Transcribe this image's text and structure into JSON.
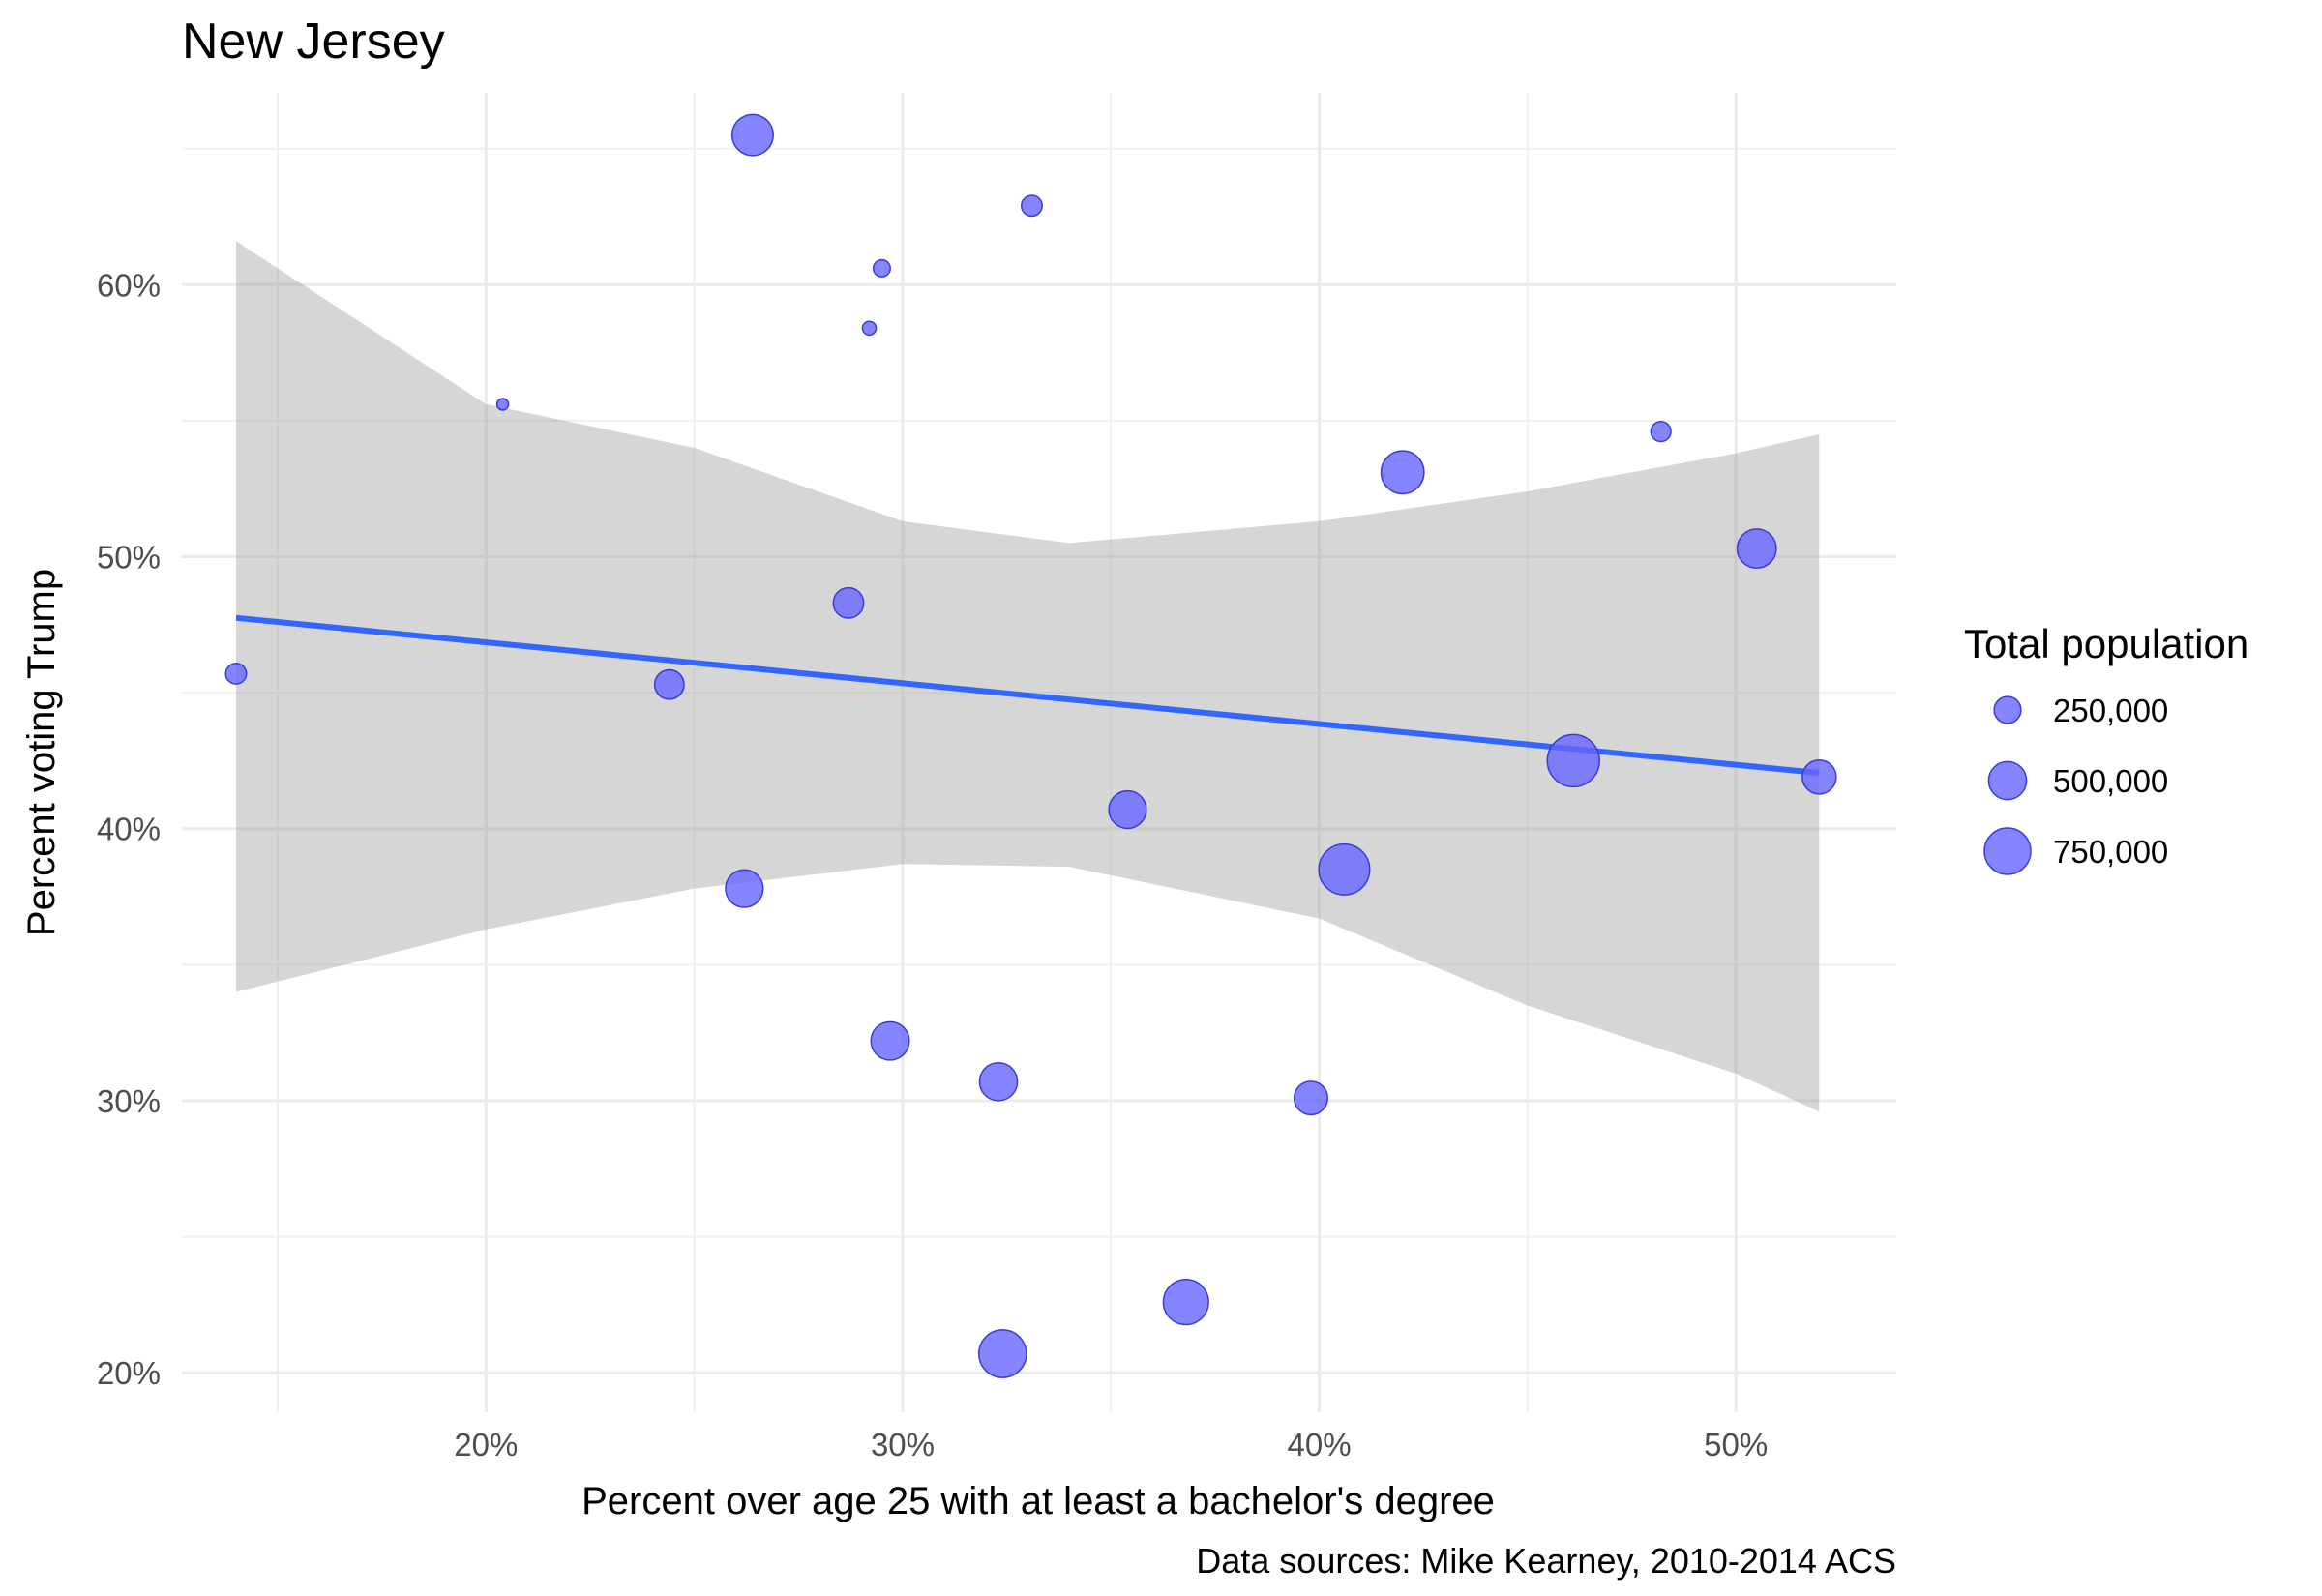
{
  "chart_data": {
    "type": "scatter",
    "title": "New Jersey",
    "xlabel": "Percent over age 25 with at least a bachelor's degree",
    "ylabel": "Percent voting Trump",
    "caption": "Data sources: Mike Kearney, 2010-2014 ACS",
    "x_ticks": [
      0.2,
      0.3,
      0.4,
      0.5
    ],
    "x_tick_labels": [
      "20%",
      "30%",
      "40%",
      "50%"
    ],
    "y_ticks": [
      0.2,
      0.3,
      0.4,
      0.5,
      0.6
    ],
    "y_tick_labels": [
      "20%",
      "30%",
      "40%",
      "50%",
      "60%"
    ],
    "xlim": [
      0.127,
      0.5385
    ],
    "ylim": [
      0.1855,
      0.6705
    ],
    "grid": true,
    "legend": {
      "title": "Total population",
      "placement": "right",
      "labels": [
        "250,000",
        "500,000",
        "750,000"
      ],
      "sizes": [
        250000,
        500000,
        750000
      ]
    },
    "point_color": "#6666ff",
    "point_stroke": "#3a3ad9",
    "point_opacity": 0.8,
    "trend_color": "#3366ff",
    "band_color": "#999999",
    "band_opacity": 0.4,
    "points": [
      {
        "x": 0.14,
        "y": 0.457,
        "pop": 150000
      },
      {
        "x": 0.204,
        "y": 0.556,
        "pop": 15000
      },
      {
        "x": 0.244,
        "y": 0.453,
        "pop": 300000
      },
      {
        "x": 0.262,
        "y": 0.378,
        "pop": 490000
      },
      {
        "x": 0.264,
        "y": 0.655,
        "pop": 590000
      },
      {
        "x": 0.287,
        "y": 0.483,
        "pop": 320000
      },
      {
        "x": 0.292,
        "y": 0.584,
        "pop": 65000
      },
      {
        "x": 0.295,
        "y": 0.606,
        "pop": 100000
      },
      {
        "x": 0.297,
        "y": 0.322,
        "pop": 510000
      },
      {
        "x": 0.323,
        "y": 0.307,
        "pop": 500000
      },
      {
        "x": 0.324,
        "y": 0.207,
        "pop": 790000
      },
      {
        "x": 0.331,
        "y": 0.629,
        "pop": 150000
      },
      {
        "x": 0.354,
        "y": 0.407,
        "pop": 490000
      },
      {
        "x": 0.368,
        "y": 0.226,
        "pop": 710000
      },
      {
        "x": 0.398,
        "y": 0.301,
        "pop": 390000
      },
      {
        "x": 0.406,
        "y": 0.385,
        "pop": 900000
      },
      {
        "x": 0.42,
        "y": 0.531,
        "pop": 640000
      },
      {
        "x": 0.461,
        "y": 0.425,
        "pop": 950000
      },
      {
        "x": 0.482,
        "y": 0.546,
        "pop": 140000
      },
      {
        "x": 0.505,
        "y": 0.503,
        "pop": 530000
      },
      {
        "x": 0.52,
        "y": 0.419,
        "pop": 400000
      }
    ],
    "trend": {
      "x": [
        0.14,
        0.52
      ],
      "y": [
        0.4775,
        0.4205
      ]
    },
    "band": {
      "x": [
        0.14,
        0.2,
        0.25,
        0.3,
        0.34,
        0.4,
        0.45,
        0.5,
        0.52
      ],
      "upper": [
        0.616,
        0.556,
        0.54,
        0.513,
        0.505,
        0.513,
        0.524,
        0.538,
        0.545
      ],
      "lower": [
        0.34,
        0.363,
        0.378,
        0.387,
        0.386,
        0.367,
        0.335,
        0.31,
        0.296
      ]
    }
  }
}
